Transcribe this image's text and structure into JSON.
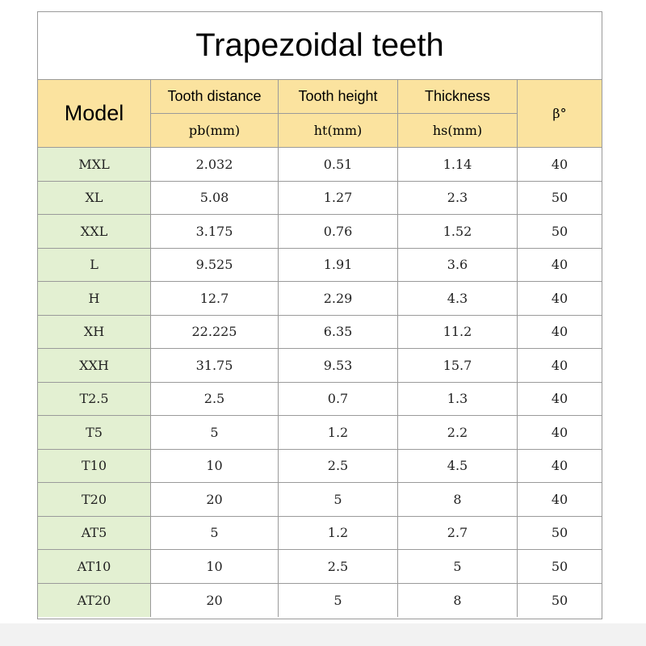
{
  "title": "Trapezoidal teeth",
  "header": {
    "model": "Model",
    "col1_name": "Tooth distance",
    "col1_unit": "pb(mm)",
    "col2_name": "Tooth height",
    "col2_unit": "ht(mm)",
    "col3_name": "Thickness",
    "col3_unit": "hs(mm)",
    "beta": "β°"
  },
  "rows": [
    {
      "model": "MXL",
      "pb": "2.032",
      "ht": "0.51",
      "hs": "1.14",
      "beta": "40"
    },
    {
      "model": "XL",
      "pb": "5.08",
      "ht": "1.27",
      "hs": "2.3",
      "beta": "50"
    },
    {
      "model": "XXL",
      "pb": "3.175",
      "ht": "0.76",
      "hs": "1.52",
      "beta": "50"
    },
    {
      "model": "L",
      "pb": "9.525",
      "ht": "1.91",
      "hs": "3.6",
      "beta": "40"
    },
    {
      "model": "H",
      "pb": "12.7",
      "ht": "2.29",
      "hs": "4.3",
      "beta": "40"
    },
    {
      "model": "XH",
      "pb": "22.225",
      "ht": "6.35",
      "hs": "11.2",
      "beta": "40"
    },
    {
      "model": "XXH",
      "pb": "31.75",
      "ht": "9.53",
      "hs": "15.7",
      "beta": "40"
    },
    {
      "model": "T2.5",
      "pb": "2.5",
      "ht": "0.7",
      "hs": "1.3",
      "beta": "40"
    },
    {
      "model": "T5",
      "pb": "5",
      "ht": "1.2",
      "hs": "2.2",
      "beta": "40"
    },
    {
      "model": "T10",
      "pb": "10",
      "ht": "2.5",
      "hs": "4.5",
      "beta": "40"
    },
    {
      "model": "T20",
      "pb": "20",
      "ht": "5",
      "hs": "8",
      "beta": "40"
    },
    {
      "model": "AT5",
      "pb": "5",
      "ht": "1.2",
      "hs": "2.7",
      "beta": "50"
    },
    {
      "model": "AT10",
      "pb": "10",
      "ht": "2.5",
      "hs": "5",
      "beta": "50"
    },
    {
      "model": "AT20",
      "pb": "20",
      "ht": "5",
      "hs": "8",
      "beta": "50"
    }
  ],
  "colors": {
    "header_bg": "#fbe39f",
    "model_col_bg": "#e3f0d2",
    "border": "#9a9a9a"
  }
}
